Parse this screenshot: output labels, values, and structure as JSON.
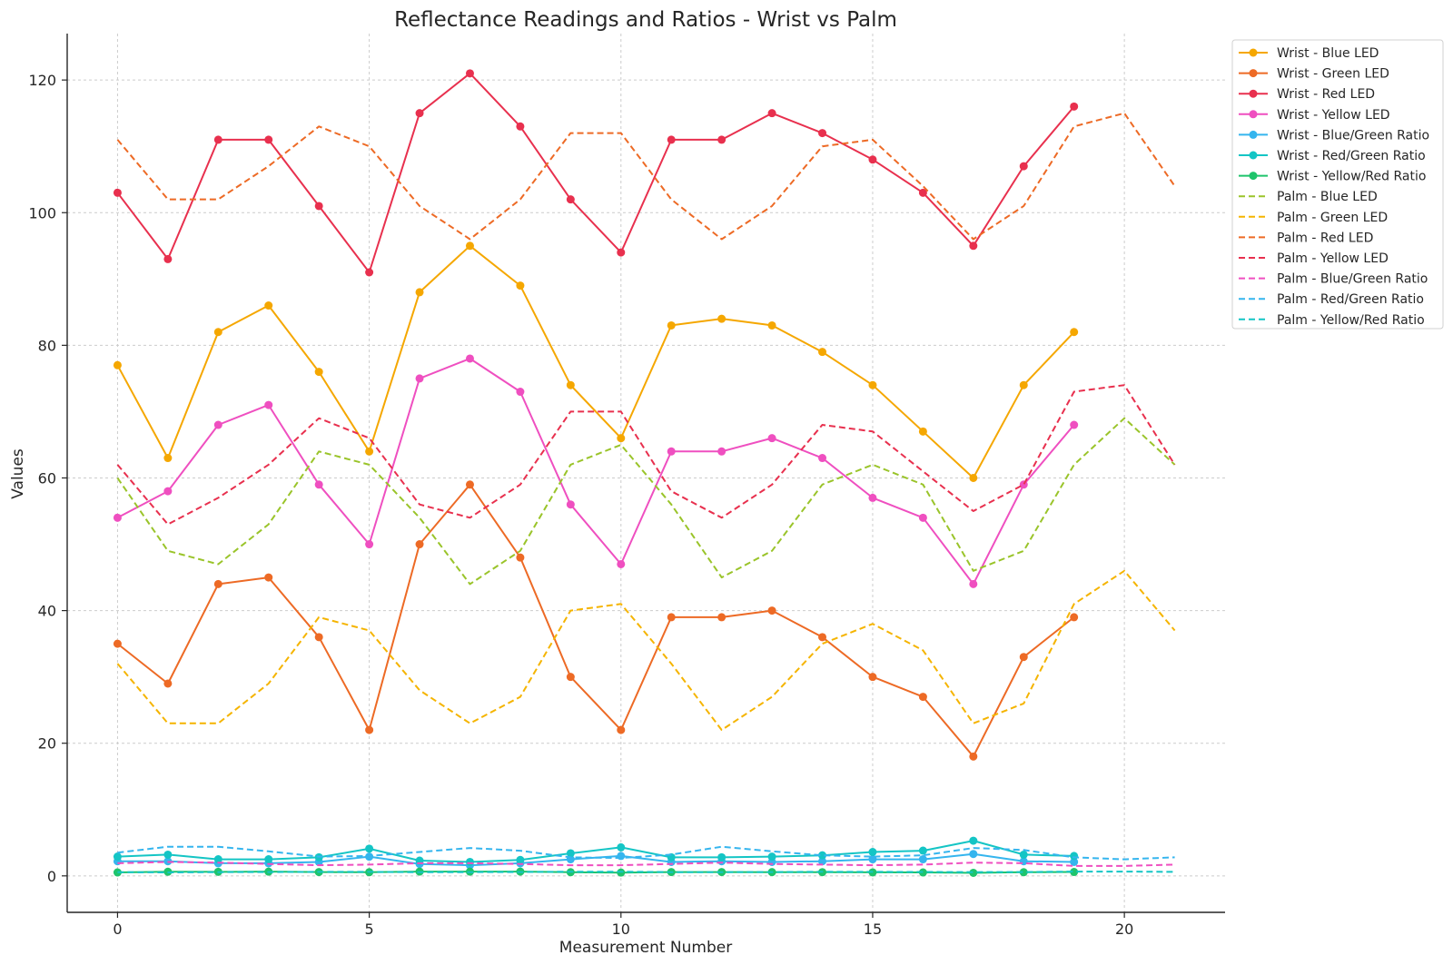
{
  "chart_data": {
    "type": "line",
    "title": "Reflectance Readings and Ratios - Wrist vs Palm",
    "xlabel": "Measurement Number",
    "ylabel": "Values",
    "xlim": [
      -1,
      22
    ],
    "ylim": [
      -5.5,
      127
    ],
    "xticks": [
      0,
      5,
      10,
      15,
      20
    ],
    "yticks": [
      0,
      20,
      40,
      60,
      80,
      100,
      120
    ],
    "grid": true,
    "legend_position": "top-right",
    "series": [
      {
        "name": "Wrist - Blue LED",
        "color": "#f5a700",
        "style": "solid",
        "marker": true,
        "x": [
          0,
          1,
          2,
          3,
          4,
          5,
          6,
          7,
          8,
          9,
          10,
          11,
          12,
          13,
          14,
          15,
          16,
          17,
          18,
          19
        ],
        "values": [
          77,
          63,
          82,
          86,
          76,
          64,
          88,
          95,
          89,
          74,
          66,
          83,
          84,
          83,
          79,
          74,
          67,
          60,
          74,
          82
        ]
      },
      {
        "name": "Wrist - Green LED",
        "color": "#ed6a25",
        "style": "solid",
        "marker": true,
        "x": [
          0,
          1,
          2,
          3,
          4,
          5,
          6,
          7,
          8,
          9,
          10,
          11,
          12,
          13,
          14,
          15,
          16,
          17,
          18,
          19
        ],
        "values": [
          35,
          29,
          44,
          45,
          36,
          22,
          50,
          59,
          48,
          30,
          22,
          39,
          39,
          40,
          36,
          30,
          27,
          18,
          33,
          39
        ]
      },
      {
        "name": "Wrist - Red LED",
        "color": "#e8304e",
        "style": "solid",
        "marker": true,
        "x": [
          0,
          1,
          2,
          3,
          4,
          5,
          6,
          7,
          8,
          9,
          10,
          11,
          12,
          13,
          14,
          15,
          16,
          17,
          18,
          19
        ],
        "values": [
          103,
          93,
          111,
          111,
          101,
          91,
          115,
          121,
          113,
          102,
          94,
          111,
          111,
          115,
          112,
          108,
          103,
          95,
          107,
          116
        ]
      },
      {
        "name": "Wrist - Yellow LED",
        "color": "#ef4fc0",
        "style": "solid",
        "marker": true,
        "x": [
          0,
          1,
          2,
          3,
          4,
          5,
          6,
          7,
          8,
          9,
          10,
          11,
          12,
          13,
          14,
          15,
          16,
          17,
          18,
          19
        ],
        "values": [
          54,
          58,
          68,
          71,
          59,
          50,
          75,
          78,
          73,
          56,
          47,
          64,
          64,
          66,
          63,
          57,
          54,
          44,
          59,
          68
        ]
      },
      {
        "name": "Wrist - Blue/Green Ratio",
        "color": "#35b5ee",
        "style": "solid",
        "marker": true,
        "x": [
          0,
          1,
          2,
          3,
          4,
          5,
          6,
          7,
          8,
          9,
          10,
          11,
          12,
          13,
          14,
          15,
          16,
          17,
          18,
          19
        ],
        "values": [
          2.2,
          2.2,
          1.9,
          1.9,
          2.1,
          2.9,
          1.8,
          1.6,
          1.9,
          2.5,
          3.0,
          2.1,
          2.2,
          2.1,
          2.2,
          2.5,
          2.5,
          3.3,
          2.2,
          2.1
        ]
      },
      {
        "name": "Wrist - Red/Green Ratio",
        "color": "#14c5c5",
        "style": "solid",
        "marker": true,
        "x": [
          0,
          1,
          2,
          3,
          4,
          5,
          6,
          7,
          8,
          9,
          10,
          11,
          12,
          13,
          14,
          15,
          16,
          17,
          18,
          19
        ],
        "values": [
          2.9,
          3.2,
          2.5,
          2.5,
          2.8,
          4.1,
          2.3,
          2.1,
          2.4,
          3.4,
          4.3,
          2.8,
          2.8,
          2.9,
          3.1,
          3.6,
          3.8,
          5.3,
          3.2,
          3.0
        ]
      },
      {
        "name": "Wrist - Yellow/Red Ratio",
        "color": "#1ec46b",
        "style": "solid",
        "marker": true,
        "x": [
          0,
          1,
          2,
          3,
          4,
          5,
          6,
          7,
          8,
          9,
          10,
          11,
          12,
          13,
          14,
          15,
          16,
          17,
          18,
          19
        ],
        "values": [
          0.52,
          0.62,
          0.61,
          0.64,
          0.58,
          0.55,
          0.65,
          0.64,
          0.65,
          0.55,
          0.5,
          0.58,
          0.58,
          0.57,
          0.56,
          0.53,
          0.52,
          0.46,
          0.55,
          0.59
        ]
      },
      {
        "name": "Palm - Blue LED",
        "color": "#9ac42a",
        "style": "dashed",
        "marker": false,
        "x": [
          0,
          1,
          2,
          3,
          4,
          5,
          6,
          7,
          8,
          9,
          10,
          11,
          12,
          13,
          14,
          15,
          16,
          17,
          18,
          19,
          20,
          21
        ],
        "values": [
          60,
          49,
          47,
          53,
          64,
          62,
          54,
          44,
          49,
          62,
          65,
          56,
          45,
          49,
          59,
          62,
          59,
          46,
          49,
          62,
          69,
          62
        ]
      },
      {
        "name": "Palm - Green LED",
        "color": "#f5b400",
        "style": "dashed",
        "marker": false,
        "x": [
          0,
          1,
          2,
          3,
          4,
          5,
          6,
          7,
          8,
          9,
          10,
          11,
          12,
          13,
          14,
          15,
          16,
          17,
          18,
          19,
          20,
          21
        ],
        "values": [
          32,
          23,
          23,
          29,
          39,
          37,
          28,
          23,
          27,
          40,
          41,
          32,
          22,
          27,
          35,
          38,
          34,
          23,
          26,
          41,
          46,
          37
        ]
      },
      {
        "name": "Palm - Red LED",
        "color": "#ed6a25",
        "style": "dashed",
        "marker": false,
        "x": [
          0,
          1,
          2,
          3,
          4,
          5,
          6,
          7,
          8,
          9,
          10,
          11,
          12,
          13,
          14,
          15,
          16,
          17,
          18,
          19,
          20,
          21
        ],
        "values": [
          111,
          102,
          102,
          107,
          113,
          110,
          101,
          96,
          102,
          112,
          112,
          102,
          96,
          101,
          110,
          111,
          104,
          96,
          101,
          113,
          115,
          104
        ]
      },
      {
        "name": "Palm - Yellow LED",
        "color": "#e8304e",
        "style": "dashed",
        "marker": false,
        "x": [
          0,
          1,
          2,
          3,
          4,
          5,
          6,
          7,
          8,
          9,
          10,
          11,
          12,
          13,
          14,
          15,
          16,
          17,
          18,
          19,
          20,
          21
        ],
        "values": [
          62,
          53,
          57,
          62,
          69,
          66,
          56,
          54,
          59,
          70,
          70,
          58,
          54,
          59,
          68,
          67,
          61,
          55,
          59,
          73,
          74,
          62
        ]
      },
      {
        "name": "Palm - Blue/Green Ratio",
        "color": "#ef4fc0",
        "style": "dashed",
        "marker": false,
        "x": [
          0,
          1,
          2,
          3,
          4,
          5,
          6,
          7,
          8,
          9,
          10,
          11,
          12,
          13,
          14,
          15,
          16,
          17,
          18,
          19,
          20,
          21
        ],
        "values": [
          1.9,
          2.1,
          2.0,
          1.8,
          1.6,
          1.7,
          1.9,
          1.9,
          1.8,
          1.6,
          1.6,
          1.8,
          2.0,
          1.8,
          1.7,
          1.6,
          1.7,
          2.0,
          1.9,
          1.5,
          1.5,
          1.7
        ]
      },
      {
        "name": "Palm - Red/Green Ratio",
        "color": "#35b5ee",
        "style": "dashed",
        "marker": false,
        "x": [
          0,
          1,
          2,
          3,
          4,
          5,
          6,
          7,
          8,
          9,
          10,
          11,
          12,
          13,
          14,
          15,
          16,
          17,
          18,
          19,
          20,
          21
        ],
        "values": [
          3.5,
          4.4,
          4.4,
          3.7,
          2.9,
          3.0,
          3.6,
          4.2,
          3.8,
          2.8,
          2.7,
          3.2,
          4.4,
          3.7,
          3.1,
          2.9,
          3.1,
          4.2,
          3.9,
          2.8,
          2.5,
          2.8
        ]
      },
      {
        "name": "Palm - Yellow/Red Ratio",
        "color": "#14c5c5",
        "style": "dashed",
        "marker": false,
        "x": [
          0,
          1,
          2,
          3,
          4,
          5,
          6,
          7,
          8,
          9,
          10,
          11,
          12,
          13,
          14,
          15,
          16,
          17,
          18,
          19,
          20,
          21
        ],
        "values": [
          0.56,
          0.52,
          0.56,
          0.58,
          0.61,
          0.6,
          0.55,
          0.56,
          0.58,
          0.63,
          0.63,
          0.57,
          0.56,
          0.58,
          0.62,
          0.6,
          0.59,
          0.57,
          0.58,
          0.65,
          0.64,
          0.6
        ]
      }
    ]
  }
}
